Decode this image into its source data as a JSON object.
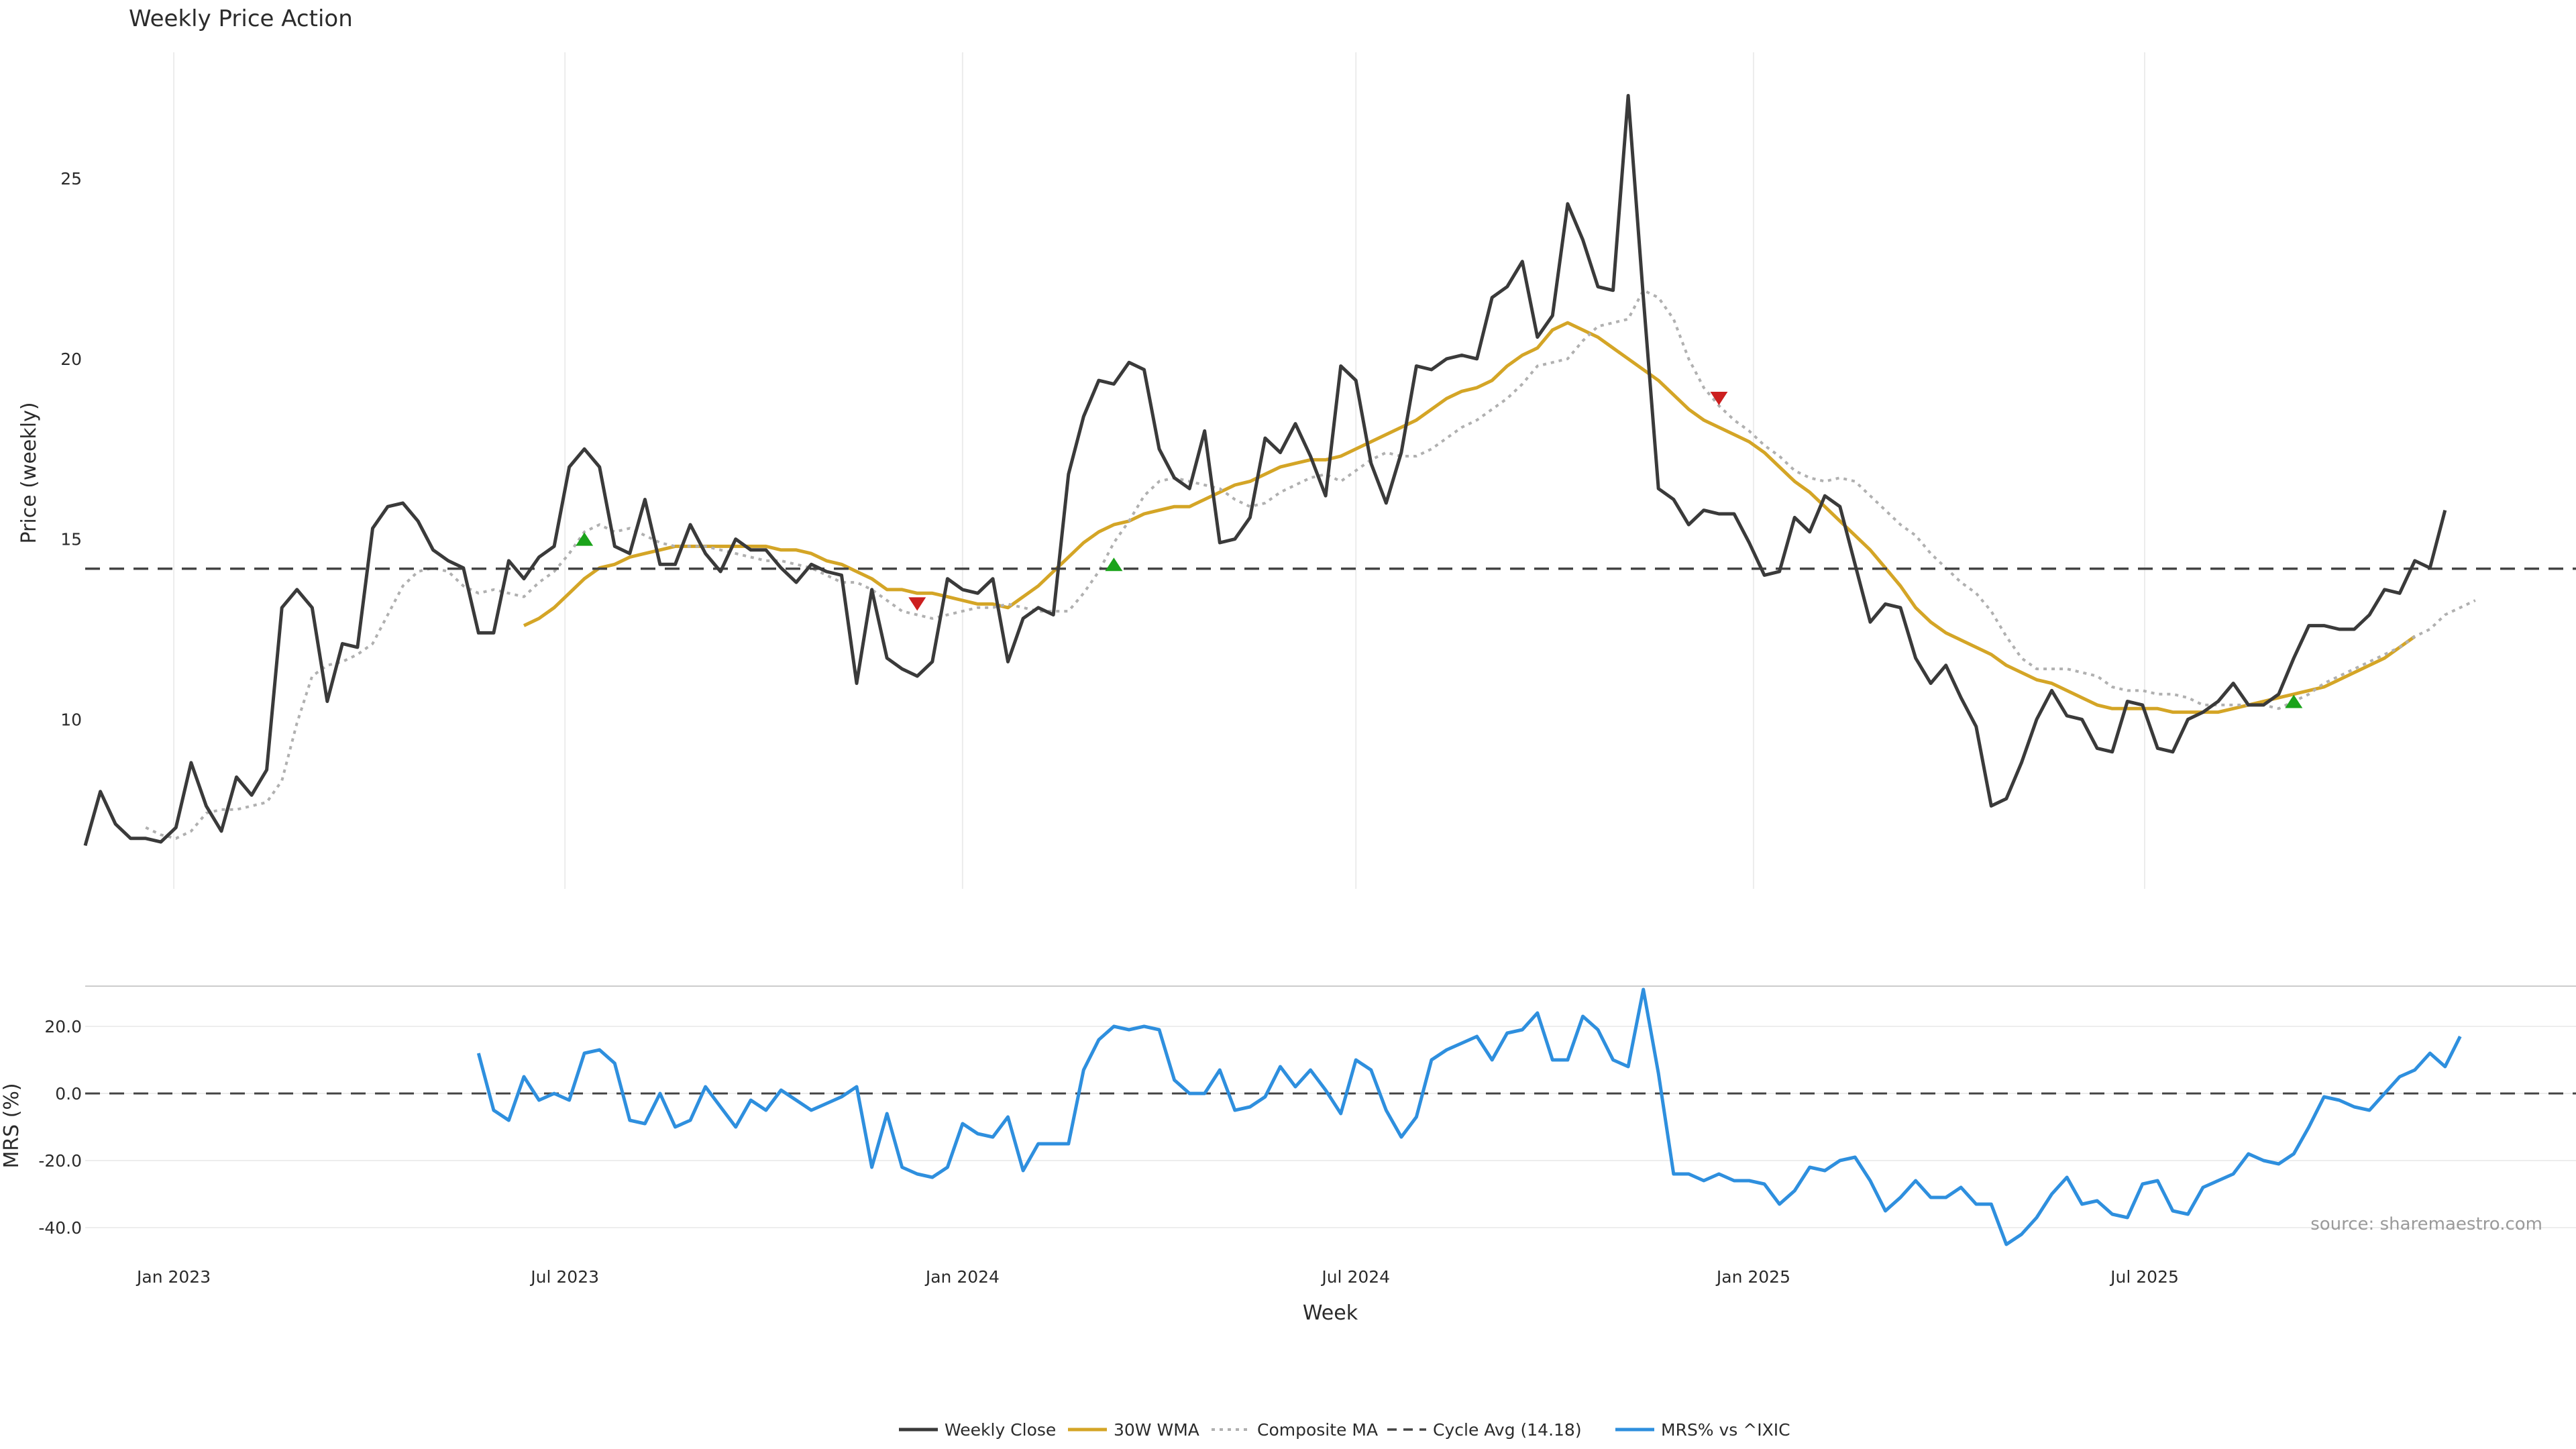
{
  "chart_data": [
    {
      "type": "line",
      "panel": "price",
      "title": "Weekly Price Action",
      "ylabel": "Price (weekly)",
      "xlabel": "Week",
      "x_ticks": [
        "Jan 2023",
        "Jul 2023",
        "Jan 2024",
        "Jul 2024",
        "Jan 2025",
        "Jul 2025"
      ],
      "y_ticks": [
        10,
        15,
        20,
        25
      ],
      "ylim": [
        5.3,
        28.5
      ],
      "grid": "vertical",
      "x_start": "2022-11-21",
      "series": [
        {
          "name": "Weekly Close",
          "color": "#3a3a3a",
          "style": "solid",
          "start_index": 0,
          "values": [
            6.5,
            8.0,
            7.1,
            6.7,
            6.7,
            6.6,
            7.0,
            8.8,
            7.6,
            6.9,
            8.4,
            7.9,
            8.6,
            13.1,
            13.6,
            13.1,
            10.5,
            12.1,
            12.0,
            15.3,
            15.9,
            16.0,
            15.5,
            14.7,
            14.4,
            14.2,
            12.4,
            12.4,
            14.4,
            13.9,
            14.5,
            14.8,
            17.0,
            17.5,
            17.0,
            14.8,
            14.6,
            16.1,
            14.3,
            14.3,
            15.4,
            14.6,
            14.1,
            15.0,
            14.7,
            14.7,
            14.2,
            13.8,
            14.3,
            14.1,
            14.0,
            11.0,
            13.6,
            11.7,
            11.4,
            11.2,
            11.6,
            13.9,
            13.6,
            13.5,
            13.9,
            11.6,
            12.8,
            13.1,
            12.9,
            16.8,
            18.4,
            19.4,
            19.3,
            19.9,
            19.7,
            17.5,
            16.7,
            16.4,
            18.0,
            14.9,
            15.0,
            15.6,
            17.8,
            17.4,
            18.2,
            17.3,
            16.2,
            19.8,
            19.4,
            17.1,
            16.0,
            17.4,
            19.8,
            19.7,
            20.0,
            20.1,
            20.0,
            21.7,
            22.0,
            22.7,
            20.6,
            21.2,
            24.3,
            23.3,
            22.0,
            21.9,
            27.3,
            21.7,
            16.4,
            16.1,
            15.4,
            15.8,
            15.7,
            15.7,
            14.9,
            14.0,
            14.1,
            15.6,
            15.2,
            16.2,
            15.9,
            14.3,
            12.7,
            13.2,
            13.1,
            11.7,
            11.0,
            11.5,
            10.6,
            9.8,
            7.6,
            7.8,
            8.8,
            10.0,
            10.8,
            10.1,
            10.0,
            9.2,
            9.1,
            10.5,
            10.4,
            9.2,
            9.1,
            10.0,
            10.2,
            10.5,
            11.0,
            10.4,
            10.4,
            10.7,
            11.7,
            12.6,
            12.6,
            12.5,
            12.5,
            12.9,
            13.6,
            13.5,
            14.4,
            14.2,
            15.8
          ]
        },
        {
          "name": "30W WMA",
          "color": "#d4a526",
          "style": "solid",
          "start_index": 29,
          "values": [
            12.6,
            12.8,
            13.1,
            13.5,
            13.9,
            14.2,
            14.3,
            14.5,
            14.6,
            14.7,
            14.8,
            14.8,
            14.8,
            14.8,
            14.8,
            14.8,
            14.8,
            14.7,
            14.7,
            14.6,
            14.4,
            14.3,
            14.1,
            13.9,
            13.6,
            13.6,
            13.5,
            13.5,
            13.4,
            13.3,
            13.2,
            13.2,
            13.1,
            13.4,
            13.7,
            14.1,
            14.5,
            14.9,
            15.2,
            15.4,
            15.5,
            15.7,
            15.8,
            15.9,
            15.9,
            16.1,
            16.3,
            16.5,
            16.6,
            16.8,
            17.0,
            17.1,
            17.2,
            17.2,
            17.3,
            17.5,
            17.7,
            17.9,
            18.1,
            18.3,
            18.6,
            18.9,
            19.1,
            19.2,
            19.4,
            19.8,
            20.1,
            20.3,
            20.8,
            21.0,
            20.8,
            20.6,
            20.3,
            20.0,
            19.7,
            19.4,
            19.0,
            18.6,
            18.3,
            18.1,
            17.9,
            17.7,
            17.4,
            17.0,
            16.6,
            16.3,
            15.9,
            15.5,
            15.1,
            14.7,
            14.2,
            13.7,
            13.1,
            12.7,
            12.4,
            12.2,
            12.0,
            11.8,
            11.5,
            11.3,
            11.1,
            11.0,
            10.8,
            10.6,
            10.4,
            10.3,
            10.3,
            10.3,
            10.3,
            10.2,
            10.2,
            10.2,
            10.2,
            10.3,
            10.4,
            10.5,
            10.6,
            10.7,
            10.8,
            10.9,
            11.1,
            11.3,
            11.5,
            11.7,
            12.0,
            12.3
          ]
        },
        {
          "name": "Composite MA",
          "color": "#b0b0b0",
          "style": "dotted",
          "start_index": 4,
          "values": [
            7.0,
            6.8,
            6.7,
            6.9,
            7.4,
            7.5,
            7.5,
            7.6,
            7.7,
            8.3,
            9.9,
            11.2,
            11.5,
            11.6,
            11.8,
            12.1,
            12.9,
            13.7,
            14.1,
            14.2,
            14.1,
            13.7,
            13.5,
            13.6,
            13.5,
            13.4,
            13.8,
            14.1,
            14.6,
            15.2,
            15.4,
            15.2,
            15.3,
            15.1,
            14.9,
            14.8,
            14.8,
            14.8,
            14.7,
            14.6,
            14.5,
            14.4,
            14.4,
            14.3,
            14.2,
            14.0,
            13.8,
            13.8,
            13.6,
            13.3,
            13.0,
            12.9,
            12.8,
            12.9,
            13.0,
            13.1,
            13.1,
            13.2,
            13.1,
            13.0,
            13.0,
            13.0,
            13.5,
            14.1,
            14.9,
            15.5,
            16.2,
            16.6,
            16.7,
            16.6,
            16.5,
            16.4,
            16.1,
            15.9,
            16.0,
            16.3,
            16.5,
            16.7,
            16.8,
            16.6,
            16.9,
            17.2,
            17.4,
            17.3,
            17.3,
            17.5,
            17.8,
            18.1,
            18.3,
            18.6,
            18.9,
            19.3,
            19.8,
            19.9,
            20.0,
            20.5,
            20.9,
            21.0,
            21.1,
            21.9,
            21.7,
            21.1,
            20.0,
            19.2,
            18.7,
            18.3,
            18.0,
            17.6,
            17.3,
            16.9,
            16.7,
            16.6,
            16.7,
            16.6,
            16.2,
            15.8,
            15.4,
            15.1,
            14.6,
            14.2,
            13.8,
            13.5,
            13.0,
            12.3,
            11.7,
            11.4,
            11.4,
            11.4,
            11.3,
            11.2,
            10.9,
            10.8,
            10.8,
            10.7,
            10.7,
            10.6,
            10.4,
            10.4,
            10.4,
            10.4,
            10.4,
            10.3,
            10.5,
            10.7,
            11.0,
            11.2,
            11.4,
            11.6,
            11.8,
            12.0,
            12.3,
            12.5,
            12.9,
            13.1,
            13.3
          ]
        },
        {
          "name": "Cycle Avg (14.18)",
          "color": "#444444",
          "style": "dashed",
          "value": 14.18
        }
      ],
      "markers": [
        {
          "type": "buy",
          "color": "#1aa31a",
          "index": 33,
          "value": 15.0
        },
        {
          "type": "sell",
          "color": "#cc1f1f",
          "index": 55,
          "value": 13.2
        },
        {
          "type": "buy",
          "color": "#1aa31a",
          "index": 68,
          "value": 14.3
        },
        {
          "type": "sell",
          "color": "#cc1f1f",
          "index": 108,
          "value": 18.9
        },
        {
          "type": "buy",
          "color": "#1aa31a",
          "index": 146,
          "value": 10.5
        }
      ]
    },
    {
      "type": "line",
      "panel": "mrs",
      "ylabel": "MRS (%)",
      "y_ticks": [
        "20.0",
        "0.0",
        "-20.0",
        "-40.0"
      ],
      "ylim": [
        -46,
        32
      ],
      "zero_line": {
        "value": 0,
        "style": "dashed"
      },
      "series": [
        {
          "name": "MRS% vs ^IXIC",
          "color": "#2e8fde",
          "style": "solid",
          "start_index": 26,
          "values": [
            12,
            -5,
            -8,
            5,
            -2,
            0,
            -2,
            12,
            13,
            9,
            -8,
            -9,
            0,
            -10,
            -8,
            2,
            -4,
            -10,
            -2,
            -5,
            1,
            -2,
            -5,
            -3,
            -1,
            2,
            -22,
            -6,
            -22,
            -24,
            -25,
            -22,
            -9,
            -12,
            -13,
            -7,
            -23,
            -15,
            -15,
            -15,
            7,
            16,
            20,
            19,
            20,
            19,
            4,
            0,
            0,
            7,
            -5,
            -4,
            -1,
            8,
            2,
            7,
            1,
            -6,
            10,
            7,
            -5,
            -13,
            -7,
            10,
            13,
            15,
            17,
            10,
            18,
            19,
            24,
            10,
            10,
            23,
            19,
            10,
            8,
            31,
            6,
            -24,
            -24,
            -26,
            -24,
            -26,
            -26,
            -27,
            -33,
            -29,
            -22,
            -23,
            -20,
            -19,
            -26,
            -35,
            -31,
            -26,
            -31,
            -31,
            -28,
            -33,
            -33,
            -45,
            -42,
            -37,
            -30,
            -25,
            -33,
            -32,
            -36,
            -37,
            -27,
            -26,
            -35,
            -36,
            -28,
            -26,
            -24,
            -18,
            -20,
            -21,
            -18,
            -10,
            -1,
            -2,
            -4,
            -5,
            0,
            5,
            7,
            12,
            8,
            17
          ]
        }
      ]
    }
  ],
  "legend": {
    "position": "bottom-center",
    "items": [
      {
        "label": "Weekly Close",
        "color": "#3a3a3a",
        "style": "solid"
      },
      {
        "label": "30W WMA",
        "color": "#d4a526",
        "style": "solid"
      },
      {
        "label": "Composite MA",
        "color": "#b0b0b0",
        "style": "dotted"
      },
      {
        "label": "Cycle Avg (14.18)",
        "color": "#444444",
        "style": "dashed"
      },
      {
        "label": "MRS% vs ^IXIC",
        "color": "#2e8fde",
        "style": "solid"
      }
    ]
  },
  "source": "source: sharemaestro.com"
}
